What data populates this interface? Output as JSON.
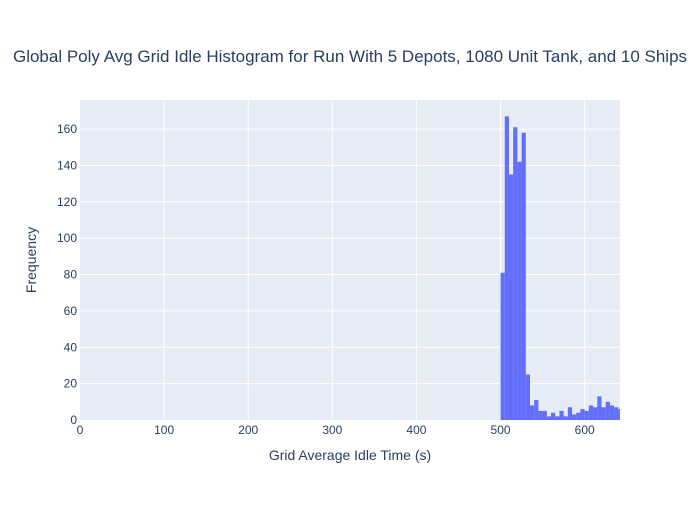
{
  "chart_data": {
    "type": "bar",
    "title": "Global Poly Avg Grid Idle Histogram for Run With 5 Depots, 1080 Unit Tank, and 10 Ships",
    "xlabel": "Grid Average Idle Time (s)",
    "ylabel": "Frequency",
    "xlim": [
      0,
      642
    ],
    "ylim": [
      0,
      176
    ],
    "xticks": [
      0,
      100,
      200,
      300,
      400,
      500,
      600
    ],
    "yticks": [
      0,
      20,
      40,
      60,
      80,
      100,
      120,
      140,
      160
    ],
    "bin_width": 5,
    "bins": [
      {
        "x0": 500,
        "x1": 505,
        "value": 81
      },
      {
        "x0": 505,
        "x1": 510,
        "value": 167
      },
      {
        "x0": 510,
        "x1": 515,
        "value": 135
      },
      {
        "x0": 515,
        "x1": 520,
        "value": 161
      },
      {
        "x0": 520,
        "x1": 525,
        "value": 142
      },
      {
        "x0": 525,
        "x1": 530,
        "value": 158
      },
      {
        "x0": 530,
        "x1": 535,
        "value": 25
      },
      {
        "x0": 535,
        "x1": 540,
        "value": 8
      },
      {
        "x0": 540,
        "x1": 545,
        "value": 11
      },
      {
        "x0": 545,
        "x1": 550,
        "value": 5
      },
      {
        "x0": 550,
        "x1": 555,
        "value": 5
      },
      {
        "x0": 555,
        "x1": 560,
        "value": 2
      },
      {
        "x0": 560,
        "x1": 565,
        "value": 4
      },
      {
        "x0": 565,
        "x1": 570,
        "value": 2
      },
      {
        "x0": 570,
        "x1": 575,
        "value": 5
      },
      {
        "x0": 575,
        "x1": 580,
        "value": 2
      },
      {
        "x0": 580,
        "x1": 585,
        "value": 7
      },
      {
        "x0": 585,
        "x1": 590,
        "value": 3
      },
      {
        "x0": 590,
        "x1": 595,
        "value": 4
      },
      {
        "x0": 595,
        "x1": 600,
        "value": 6
      },
      {
        "x0": 600,
        "x1": 605,
        "value": 5
      },
      {
        "x0": 605,
        "x1": 610,
        "value": 8
      },
      {
        "x0": 610,
        "x1": 615,
        "value": 7
      },
      {
        "x0": 615,
        "x1": 620,
        "value": 13
      },
      {
        "x0": 620,
        "x1": 625,
        "value": 7
      },
      {
        "x0": 625,
        "x1": 630,
        "value": 10
      },
      {
        "x0": 630,
        "x1": 635,
        "value": 8
      },
      {
        "x0": 635,
        "x1": 640,
        "value": 7
      },
      {
        "x0": 640,
        "x1": 645,
        "value": 6
      }
    ],
    "grid": true,
    "legend": false
  },
  "colors": {
    "bar": "#636efa",
    "plot_background": "#e5ecf6",
    "grid": "#ffffff",
    "text": "#2a3f5f"
  }
}
